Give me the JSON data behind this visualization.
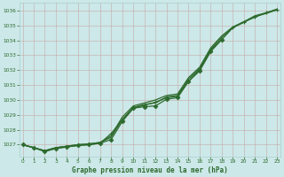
{
  "x": [
    0,
    1,
    2,
    3,
    4,
    5,
    6,
    7,
    8,
    9,
    10,
    11,
    12,
    13,
    14,
    15,
    16,
    17,
    18,
    19,
    20,
    21,
    22,
    23
  ],
  "line_smooth1": [
    1027.0,
    1026.8,
    1026.6,
    1026.8,
    1026.9,
    1027.0,
    1027.05,
    1027.15,
    1027.5,
    1028.7,
    1029.5,
    1029.7,
    1029.8,
    1030.2,
    1030.3,
    1031.4,
    1032.1,
    1033.4,
    1034.2,
    1034.85,
    1035.2,
    1035.6,
    1035.8,
    1036.05
  ],
  "line_smooth2": [
    1027.0,
    1026.8,
    1026.6,
    1026.8,
    1026.9,
    1027.0,
    1027.05,
    1027.15,
    1027.6,
    1028.85,
    1029.6,
    1029.8,
    1030.0,
    1030.3,
    1030.4,
    1031.5,
    1032.2,
    1033.5,
    1034.3,
    1034.9,
    1035.25,
    1035.65,
    1035.85,
    1036.1
  ],
  "line_marker1_x": [
    0,
    1,
    2,
    3,
    4,
    5,
    6,
    7,
    8,
    9,
    10,
    11,
    12,
    13,
    14,
    15,
    16,
    17,
    18
  ],
  "line_marker1_y": [
    1027.0,
    1026.8,
    1026.55,
    1026.75,
    1026.85,
    1026.95,
    1027.0,
    1027.1,
    1027.35,
    1028.55,
    1029.45,
    1029.55,
    1029.6,
    1030.05,
    1030.15,
    1031.25,
    1031.95,
    1033.25,
    1034.05
  ],
  "line_marker2_x": [
    0,
    1,
    2,
    3,
    4,
    5,
    6,
    7,
    8,
    9,
    10,
    11,
    12,
    13,
    14,
    15,
    16,
    17,
    18,
    19,
    20,
    21,
    22,
    23
  ],
  "line_marker2_y": [
    1027.0,
    1026.8,
    1026.55,
    1026.75,
    1026.85,
    1026.95,
    1027.0,
    1027.1,
    1027.75,
    1028.65,
    1029.45,
    1029.65,
    1029.85,
    1030.15,
    1030.25,
    1031.25,
    1032.05,
    1033.35,
    1034.05,
    1034.85,
    1035.25,
    1035.55,
    1035.85,
    1036.05
  ],
  "line_color": "#2d6a2d",
  "bg_color": "#cce8e8",
  "grid_color": "#aacfcf",
  "tick_color": "#2d6a2d",
  "title": "Graphe pression niveau de la mer (hPa)",
  "title_color": "#2d6a2d",
  "ylim": [
    1026.2,
    1036.5
  ],
  "xlim": [
    -0.3,
    23.3
  ],
  "yticks": [
    1027,
    1028,
    1029,
    1030,
    1031,
    1032,
    1033,
    1034,
    1035,
    1036
  ],
  "xticks": [
    0,
    1,
    2,
    3,
    4,
    5,
    6,
    7,
    8,
    9,
    10,
    11,
    12,
    13,
    14,
    15,
    16,
    17,
    18,
    19,
    20,
    21,
    22,
    23
  ]
}
